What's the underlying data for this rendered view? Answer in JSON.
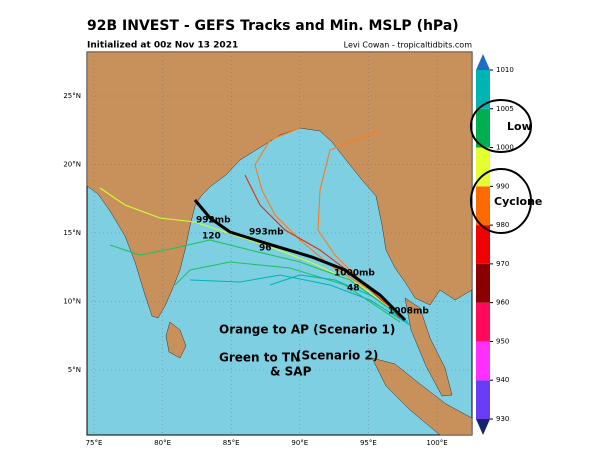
{
  "header": {
    "title": "92B INVEST - GEFS Tracks and Min. MSLP (hPa)",
    "subtitle": "Initialized at 00z Nov 13 2021",
    "credit": "Levi Cowan - tropicaltidbits.com"
  },
  "map": {
    "lat_labels": [
      "25°N",
      "20°N",
      "15°N",
      "10°N",
      "5°N"
    ],
    "lon_labels": [
      "75°E",
      "80°E",
      "85°E",
      "90°E",
      "95°E",
      "100°E"
    ],
    "markers": [
      "992mb",
      "120",
      "993mb",
      "96",
      "1000mb",
      "48",
      "1008mb"
    ]
  },
  "colorbar": {
    "ticks": [
      930,
      940,
      950,
      960,
      970,
      980,
      990,
      1000,
      1005,
      1010
    ],
    "colors": [
      "#6b3cf5",
      "#ff30ff",
      "#ff0a5a",
      "#8a0000",
      "#f00000",
      "#ff6a00",
      "#e6ff30",
      "#00b050",
      "#00b4b4"
    ],
    "extend_colors": [
      "#16246a",
      "#1f6cc8"
    ]
  },
  "annotations": {
    "low": "Low",
    "cyclone": "Cyclone",
    "scenario1": "Orange to AP (Scenario 1)",
    "scenario2": "Green to TN",
    "scenario2_label": "(Scenario 2)",
    "scenario2_line2": "& SAP"
  }
}
